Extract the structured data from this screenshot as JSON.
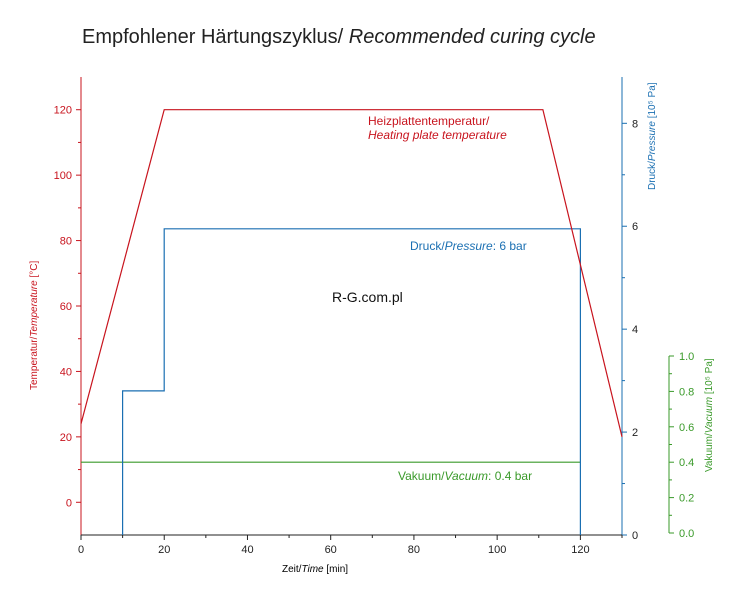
{
  "colors": {
    "temperature": "#c8141e",
    "pressure": "#1a6fb2",
    "vacuum": "#3a9a2a",
    "text": "#222222"
  },
  "title": {
    "regular": "Empfohlener Härtungszyklus/ ",
    "italic": "Recommended curing cycle"
  },
  "watermark": "R-G.com.pl",
  "chart_data": {
    "type": "line",
    "title": "Empfohlener Härtungszyklus/ Recommended curing cycle",
    "x_axis": {
      "label_regular": "Zeit/",
      "label_italic": "Time",
      "label_suffix": " [min]",
      "range": [
        0,
        130
      ],
      "ticks": [
        0,
        20,
        40,
        60,
        80,
        100,
        120
      ],
      "tick_labels": [
        "0",
        "20",
        "40",
        "60",
        "80",
        "100",
        "120"
      ]
    },
    "y_axes": [
      {
        "id": "temperature",
        "side": "left",
        "label_regular": "Temperatur/",
        "label_italic": "Temperature",
        "label_suffix": " [°C]",
        "range": [
          -10,
          130
        ],
        "ticks": [
          0,
          20,
          40,
          60,
          80,
          100,
          120
        ],
        "tick_labels": [
          "0",
          "20",
          "40",
          "60",
          "80",
          "100",
          "120"
        ]
      },
      {
        "id": "pressure",
        "side": "right",
        "label_regular": "Druck/",
        "label_italic": "Pressure",
        "label_suffix": " [10⁵ Pa]",
        "range": [
          0,
          8.9
        ],
        "ticks": [
          0,
          2,
          4,
          6,
          8
        ],
        "tick_labels": [
          "0",
          "2",
          "4",
          "6",
          "8"
        ]
      },
      {
        "id": "vacuum",
        "side": "right-outer",
        "label_regular": "Vakuum/",
        "label_italic": "Vacuum",
        "label_suffix": " [10⁵ Pa]",
        "range": [
          0,
          1.0
        ],
        "ticks": [
          0,
          0.2,
          0.4,
          0.6,
          0.8,
          1.0
        ],
        "tick_labels": [
          "0.0",
          "0.2",
          "0.4",
          "0.6",
          "0.8",
          "1.0"
        ]
      }
    ],
    "series": [
      {
        "name": "Heizplattentemperatur/ Heating plate temperature",
        "axis": "temperature",
        "x": [
          0,
          20,
          111,
          130
        ],
        "y": [
          24,
          120,
          120,
          20
        ]
      },
      {
        "name": "Druck/Pressure: 6 bar",
        "axis": "pressure",
        "x": [
          10,
          10,
          20,
          20,
          120,
          120
        ],
        "y": [
          0,
          2.8,
          2.8,
          5.95,
          5.95,
          0
        ]
      },
      {
        "name": "Vakuum/Vacuum: 0.4 bar",
        "axis": "vacuum",
        "x": [
          0,
          120
        ],
        "y": [
          0.4,
          0.4
        ]
      }
    ],
    "annotations": {
      "temperature": {
        "line1": "Heizplattentemperatur/",
        "line2": "Heating plate temperature"
      },
      "pressure": {
        "regular": "Druck/",
        "italic": "Pressure",
        "suffix": ": 6 bar"
      },
      "vacuum": {
        "regular": "Vakuum/",
        "italic": "Vacuum",
        "suffix": ": 0.4 bar"
      }
    },
    "grid": false,
    "legend": "none"
  }
}
